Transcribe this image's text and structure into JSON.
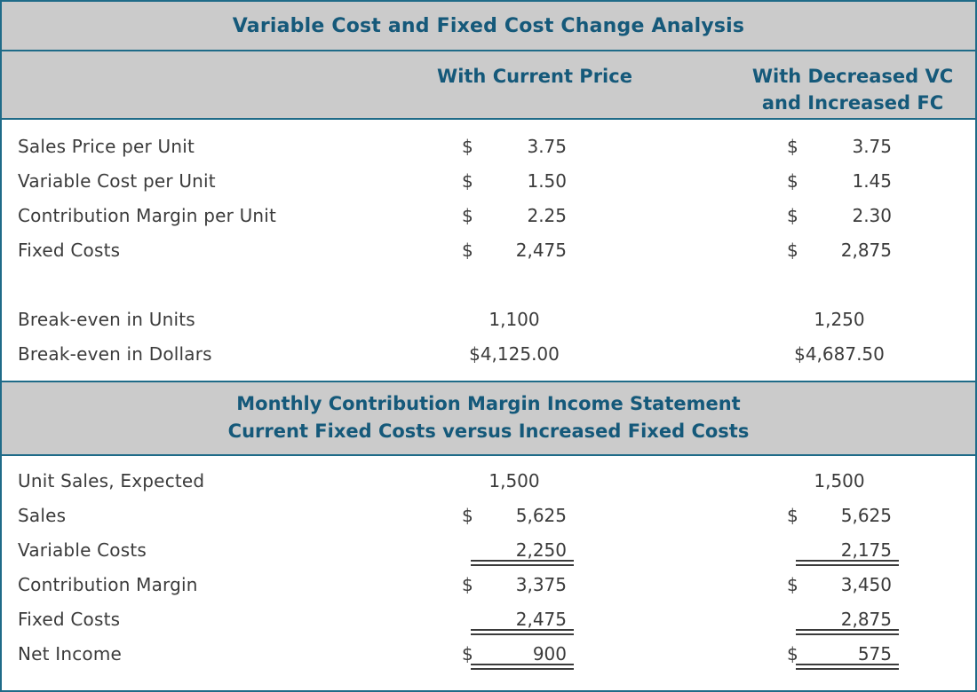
{
  "colors": {
    "accent_teal_text": "#15597a",
    "border_teal": "#1f6b88",
    "band_gray": "#cbcbcb",
    "body_text": "#3b3b3b",
    "background": "#ffffff"
  },
  "header": {
    "title": "Variable Cost and Fixed Cost Change Analysis"
  },
  "columns": {
    "current": "With Current Price",
    "changed_line1": "With Decreased VC",
    "changed_line2": "and Increased FC"
  },
  "analysis": {
    "rows": {
      "sales_price": {
        "label": "Sales Price per Unit",
        "cur": "$",
        "c1": "3.75",
        "c2": "3.75"
      },
      "variable_cost": {
        "label": "Variable Cost per Unit",
        "cur": "$",
        "c1": "1.50",
        "c2": "1.45"
      },
      "contribution_margin": {
        "label": "Contribution Margin per Unit",
        "cur": "$",
        "c1": "2.25",
        "c2": "2.30"
      },
      "fixed_costs": {
        "label": "Fixed Costs",
        "cur": "$",
        "c1": "2,475",
        "c2": "2,875"
      },
      "breakeven_units": {
        "label": "Break-even in Units",
        "c1": "1,100",
        "c2": "1,250"
      },
      "breakeven_dollars": {
        "label": "Break-even in Dollars",
        "c1": "$4,125.00",
        "c2": "$4,687.50"
      }
    }
  },
  "statement_header": {
    "line1": "Monthly Contribution Margin Income Statement",
    "line2": "Current Fixed Costs versus Increased Fixed Costs"
  },
  "statement": {
    "rows": {
      "unit_sales": {
        "label": "Unit Sales, Expected",
        "c1": "1,500",
        "c2": "1,500"
      },
      "sales": {
        "label": "Sales",
        "cur": "$",
        "c1": "5,625",
        "c2": "5,625"
      },
      "variable_costs": {
        "label": "Variable Costs",
        "c1": "2,250",
        "c2": "2,175"
      },
      "contribution_margin": {
        "label": "Contribution Margin",
        "cur": "$",
        "c1": "3,375",
        "c2": "3,450"
      },
      "fixed_costs": {
        "label": "Fixed Costs",
        "c1": "2,475",
        "c2": "2,875"
      },
      "net_income": {
        "label": "Net Income",
        "cur": "$",
        "c1": "900",
        "c2": "575"
      }
    }
  }
}
